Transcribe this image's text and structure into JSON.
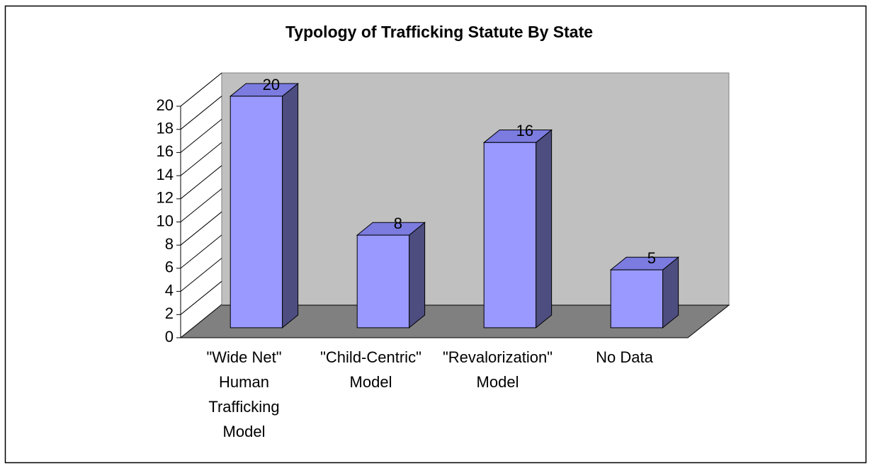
{
  "chart_data": {
    "type": "bar3d",
    "title": "Typology of Trafficking Statute By State",
    "categories": [
      "\"Wide Net\" Human Trafficking Model",
      "\"Child-Centric\" Model",
      "\"Revalorization\" Model",
      "No Data"
    ],
    "values": [
      20,
      8,
      16,
      5
    ],
    "color": "#9999ff",
    "ylim": [
      0,
      20
    ],
    "yticks": [
      0,
      2,
      4,
      6,
      8,
      10,
      12,
      14,
      16,
      18,
      20
    ]
  }
}
